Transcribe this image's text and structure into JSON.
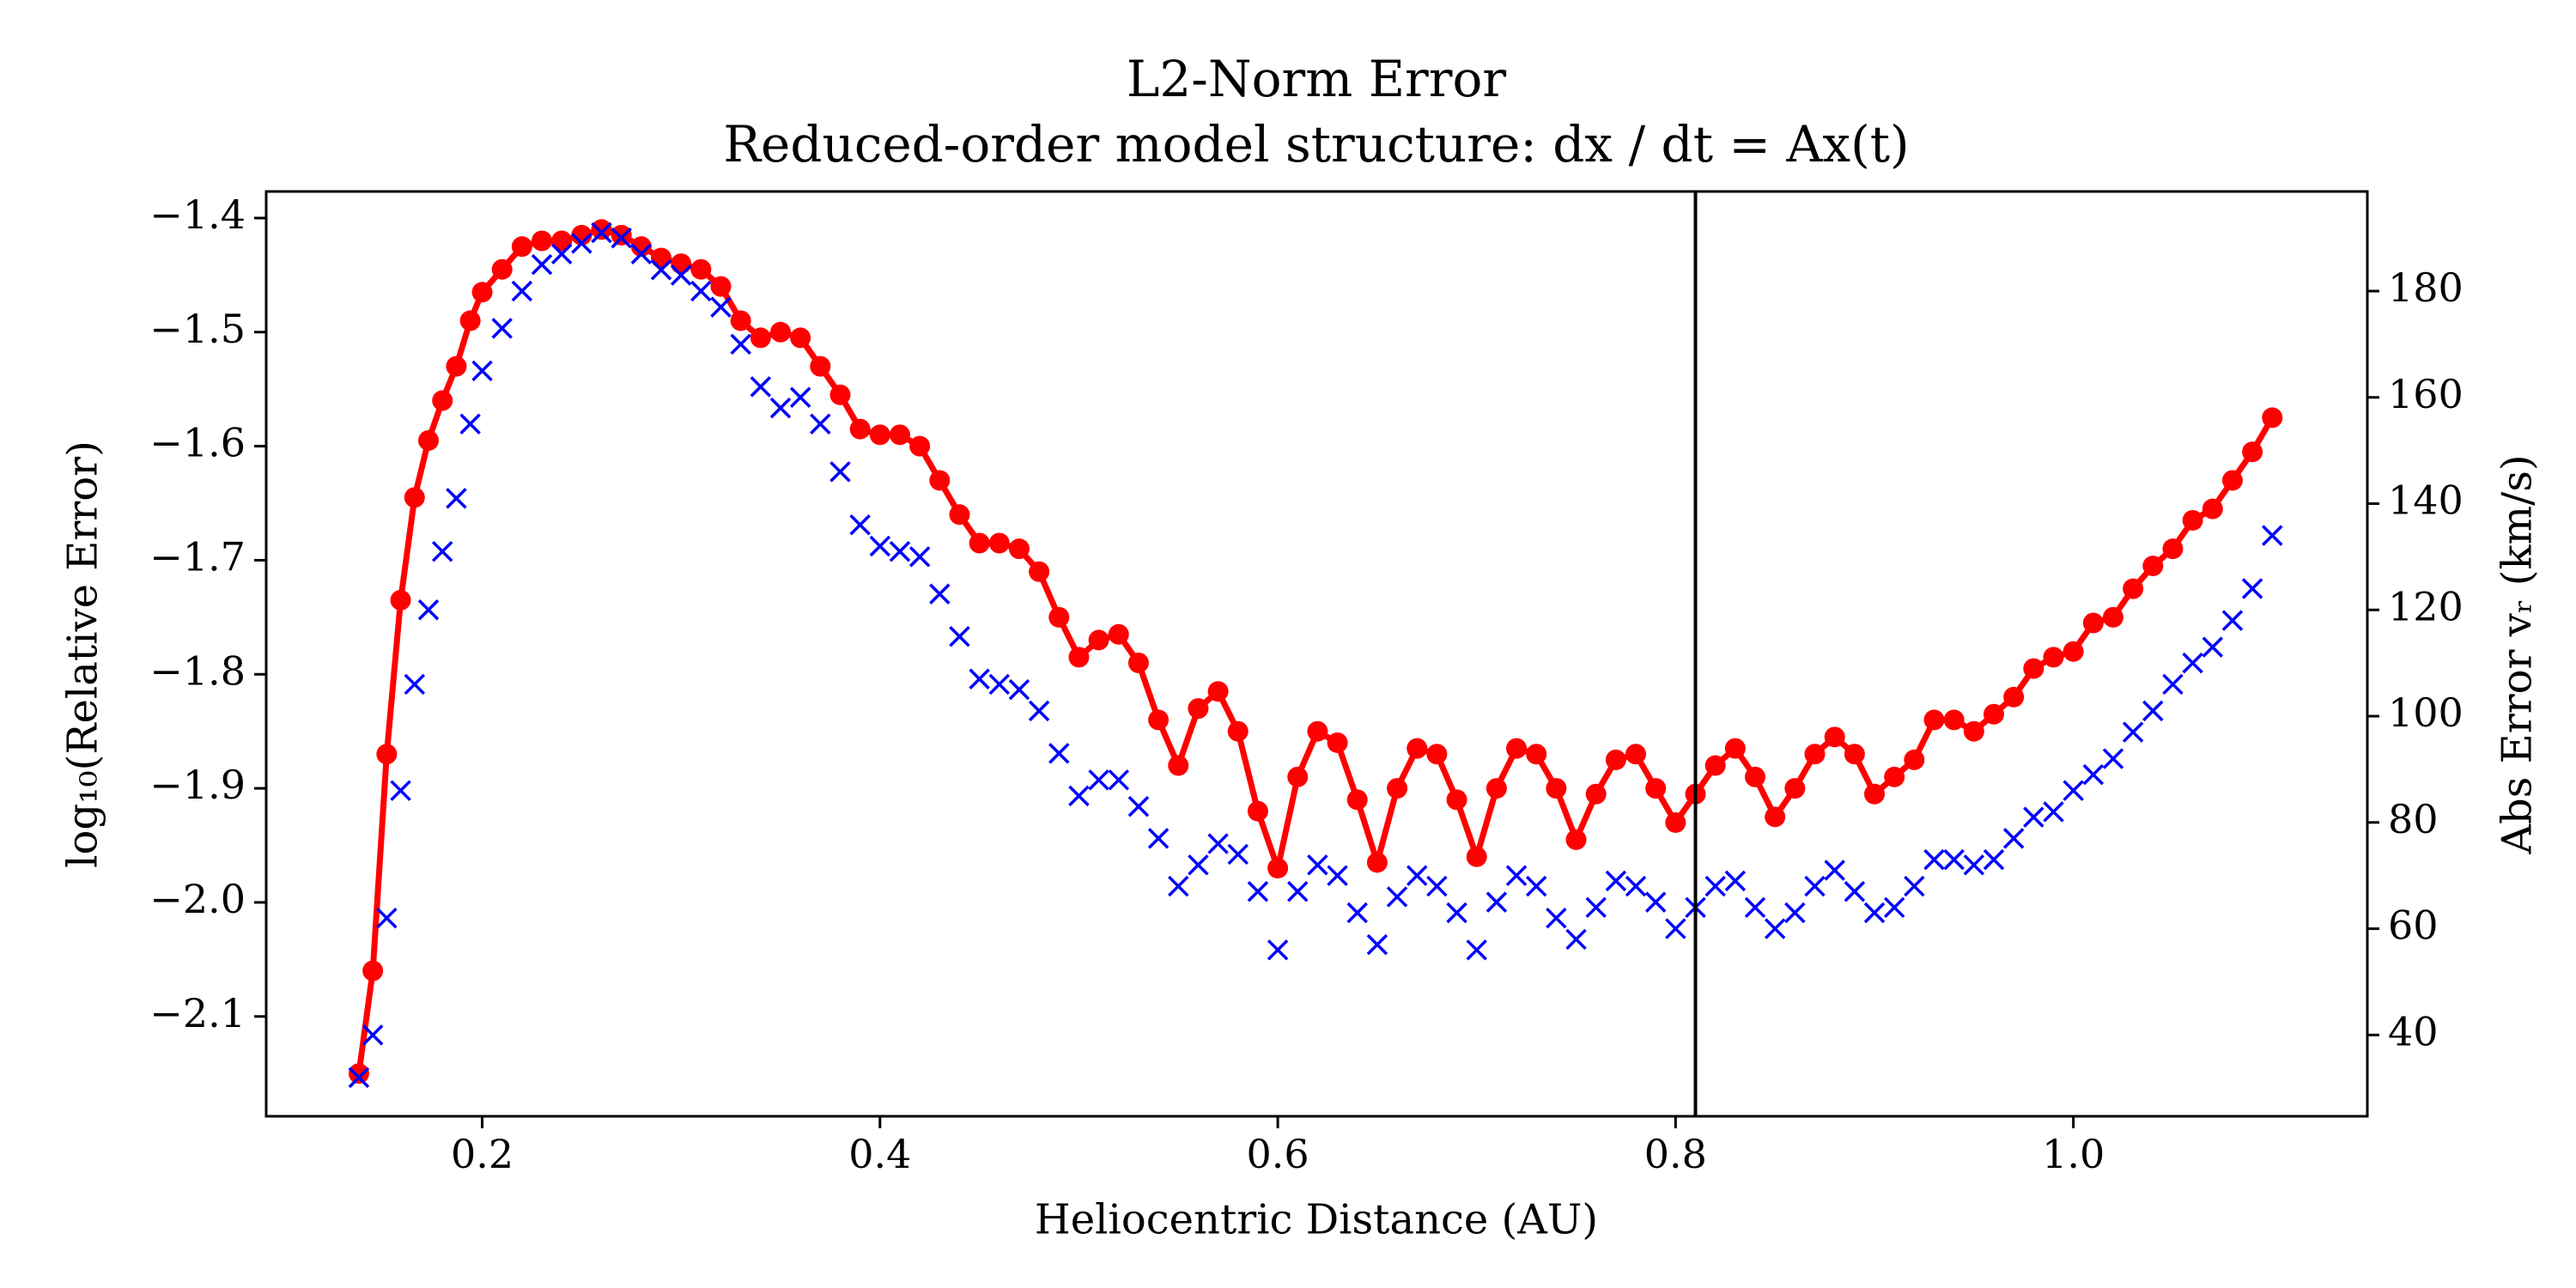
{
  "chart_data": {
    "type": "line",
    "title": "L2-Norm Error",
    "subtitle": "Reduced-order model structure: dx / dt = Ax(t)",
    "x_label": "Heliocentric Distance (AU)",
    "y_label": "log₁₀(Relative Error)",
    "y2_label": "Abs Error vᵣ (km/s)",
    "x": [
      0.138,
      0.145,
      0.152,
      0.159,
      0.166,
      0.173,
      0.18,
      0.187,
      0.194,
      0.2,
      0.21,
      0.22,
      0.23,
      0.24,
      0.25,
      0.26,
      0.27,
      0.28,
      0.29,
      0.3,
      0.31,
      0.32,
      0.33,
      0.34,
      0.35,
      0.36,
      0.37,
      0.38,
      0.39,
      0.4,
      0.41,
      0.42,
      0.43,
      0.44,
      0.45,
      0.46,
      0.47,
      0.48,
      0.49,
      0.5,
      0.51,
      0.52,
      0.53,
      0.54,
      0.55,
      0.56,
      0.57,
      0.58,
      0.59,
      0.6,
      0.61,
      0.62,
      0.63,
      0.64,
      0.65,
      0.66,
      0.67,
      0.68,
      0.69,
      0.7,
      0.71,
      0.72,
      0.73,
      0.74,
      0.75,
      0.76,
      0.77,
      0.78,
      0.79,
      0.8,
      0.81,
      0.82,
      0.83,
      0.84,
      0.85,
      0.86,
      0.87,
      0.88,
      0.89,
      0.9,
      0.91,
      0.92,
      0.93,
      0.94,
      0.95,
      0.96,
      0.97,
      0.98,
      0.99,
      1.0,
      1.01,
      1.02,
      1.03,
      1.04,
      1.05,
      1.06,
      1.07,
      1.08,
      1.09,
      1.1
    ],
    "series": [
      {
        "name": "log10 Relative Error",
        "color": "#ff0000",
        "axis": "y",
        "marker": "o",
        "linestyle": "-",
        "values": [
          -2.15,
          -2.06,
          -1.87,
          -1.735,
          -1.645,
          -1.595,
          -1.56,
          -1.53,
          -1.49,
          -1.465,
          -1.445,
          -1.425,
          -1.42,
          -1.42,
          -1.415,
          -1.41,
          -1.415,
          -1.425,
          -1.435,
          -1.44,
          -1.445,
          -1.46,
          -1.49,
          -1.505,
          -1.5,
          -1.505,
          -1.53,
          -1.555,
          -1.585,
          -1.59,
          -1.59,
          -1.6,
          -1.63,
          -1.66,
          -1.685,
          -1.685,
          -1.69,
          -1.71,
          -1.75,
          -1.785,
          -1.77,
          -1.765,
          -1.79,
          -1.84,
          -1.88,
          -1.83,
          -1.815,
          -1.85,
          -1.92,
          -1.97,
          -1.89,
          -1.85,
          -1.86,
          -1.91,
          -1.965,
          -1.9,
          -1.865,
          -1.87,
          -1.91,
          -1.96,
          -1.9,
          -1.865,
          -1.87,
          -1.9,
          -1.945,
          -1.905,
          -1.875,
          -1.87,
          -1.9,
          -1.93,
          -1.905,
          -1.88,
          -1.865,
          -1.89,
          -1.925,
          -1.9,
          -1.87,
          -1.855,
          -1.87,
          -1.905,
          -1.89,
          -1.875,
          -1.84,
          -1.84,
          -1.85,
          -1.835,
          -1.82,
          -1.795,
          -1.785,
          -1.78,
          -1.755,
          -1.75,
          -1.725,
          -1.705,
          -1.69,
          -1.665,
          -1.655,
          -1.63,
          -1.605,
          -1.575
        ]
      },
      {
        "name": "Abs Error vr",
        "color": "#0000ff",
        "axis": "y2",
        "marker": "x",
        "linestyle": "none",
        "values": [
          32,
          40,
          62,
          86,
          106,
          120,
          131,
          141,
          155,
          165,
          173,
          180,
          185,
          187,
          189,
          191,
          190,
          187,
          184,
          183,
          180,
          177,
          170,
          162,
          158,
          160,
          155,
          146,
          136,
          132,
          131,
          130,
          123,
          115,
          107,
          106,
          105,
          101,
          93,
          85,
          88,
          88,
          83,
          77,
          68,
          72,
          76,
          74,
          67,
          56,
          67,
          72,
          70,
          63,
          57,
          66,
          70,
          68,
          63,
          56,
          65,
          70,
          68,
          62,
          58,
          64,
          69,
          68,
          65,
          60,
          64,
          68,
          69,
          64,
          60,
          63,
          68,
          71,
          67,
          63,
          64,
          68,
          73,
          73,
          72,
          73,
          77,
          81,
          82,
          86,
          89,
          92,
          97,
          101,
          106,
          110,
          113,
          118,
          124,
          134
        ]
      }
    ],
    "vlines": [
      {
        "x": 0.81,
        "color": "#000000"
      }
    ],
    "xlim": [
      0.0914,
      1.1478
    ],
    "ylim": [
      -2.1875,
      -1.3767
    ],
    "y2lim": [
      24.7,
      198.75
    ],
    "xticks": [
      0.2,
      0.4,
      0.6,
      0.8,
      {
        "value": 1.0,
        "label": "1.0"
      }
    ],
    "yticks": [
      {
        "value": -2.1,
        "label": "−2.1"
      },
      {
        "value": -2.0,
        "label": "−2.0"
      },
      {
        "value": -1.9,
        "label": "−1.9"
      },
      {
        "value": -1.8,
        "label": "−1.8"
      },
      {
        "value": -1.7,
        "label": "−1.7"
      },
      {
        "value": -1.6,
        "label": "−1.6"
      },
      {
        "value": -1.5,
        "label": "−1.5"
      },
      {
        "value": -1.4,
        "label": "−1.4"
      }
    ],
    "y2ticks": [
      40,
      60,
      80,
      100,
      120,
      140,
      160,
      180
    ],
    "grid": false
  }
}
